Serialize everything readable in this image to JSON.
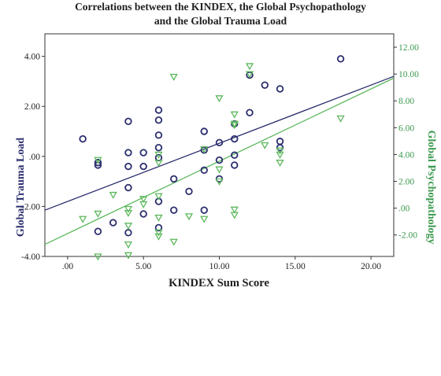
{
  "chart_data": {
    "type": "scatter",
    "title_line1": "Correlations between the KINDEX, the Global Psychopathology",
    "title_line2": "and the Global Trauma Load",
    "xlabel": "KINDEX Sum Score",
    "ylabel_left": "Global Trauma Load",
    "ylabel_right": "Global Psychopathology",
    "xlim": [
      -1.5,
      21.5
    ],
    "ylim_left": [
      -4.0,
      4.9
    ],
    "ylim_right": [
      -3.6,
      13.0
    ],
    "x_ticks": [
      ".00",
      "5.00",
      "10.00",
      "15.00",
      "20.00"
    ],
    "y_left_ticks": [
      "-4.00",
      "-2.00",
      ".00",
      "2.00",
      "4.00"
    ],
    "y_right_ticks": [
      "-2.00",
      ".00",
      "2.00",
      "4.00",
      "6.00",
      "8.00",
      "10.00",
      "12.00"
    ],
    "colors": {
      "trauma": "#2b2e6e",
      "psycho": "#5cb85c",
      "frame": "#333333",
      "label_left": "#2b2e6e",
      "label_right": "#3d9a4f"
    },
    "series": [
      {
        "name": "Global Trauma Load",
        "axis": "left",
        "marker": "circle",
        "points": [
          [
            1,
            0.7
          ],
          [
            2,
            -0.25
          ],
          [
            2,
            -0.35
          ],
          [
            2,
            -3.0
          ],
          [
            3,
            -2.65
          ],
          [
            4,
            1.4
          ],
          [
            4,
            0.15
          ],
          [
            4,
            -0.4
          ],
          [
            4,
            -1.25
          ],
          [
            4,
            -3.05
          ],
          [
            5,
            0.15
          ],
          [
            5,
            -0.4
          ],
          [
            5,
            -2.3
          ],
          [
            6,
            1.85
          ],
          [
            6,
            1.45
          ],
          [
            6,
            0.85
          ],
          [
            6,
            0.35
          ],
          [
            6,
            -0.05
          ],
          [
            6,
            -1.8
          ],
          [
            6,
            -2.85
          ],
          [
            7,
            -0.9
          ],
          [
            7,
            -2.15
          ],
          [
            8,
            -1.4
          ],
          [
            9,
            1.0
          ],
          [
            9,
            0.25
          ],
          [
            9,
            -0.55
          ],
          [
            9,
            -2.15
          ],
          [
            10,
            0.55
          ],
          [
            10,
            -0.15
          ],
          [
            10,
            -0.9
          ],
          [
            11,
            1.3
          ],
          [
            11,
            0.7
          ],
          [
            11,
            0.05
          ],
          [
            11,
            -0.35
          ],
          [
            12,
            3.25
          ],
          [
            12,
            1.75
          ],
          [
            13,
            2.85
          ],
          [
            14,
            2.7
          ],
          [
            14,
            0.6
          ],
          [
            14,
            0.35
          ],
          [
            18,
            3.9
          ]
        ],
        "fit_line": {
          "x": [
            -1.5,
            21.5
          ],
          "y": [
            -2.15,
            3.2
          ]
        }
      },
      {
        "name": "Global Psychopathology",
        "axis": "right",
        "marker": "triangle-down",
        "points": [
          [
            1,
            -0.8
          ],
          [
            2,
            3.6
          ],
          [
            2,
            -0.4
          ],
          [
            2,
            -3.6
          ],
          [
            3,
            1.0
          ],
          [
            4,
            -0.05
          ],
          [
            4,
            -0.35
          ],
          [
            4,
            -1.3
          ],
          [
            4,
            -2.7
          ],
          [
            4,
            -3.5
          ],
          [
            5,
            0.7
          ],
          [
            5,
            0.3
          ],
          [
            6,
            4.0
          ],
          [
            6,
            3.4
          ],
          [
            6,
            0.9
          ],
          [
            6,
            -0.7
          ],
          [
            6,
            -1.8
          ],
          [
            6,
            -2.1
          ],
          [
            7,
            9.8
          ],
          [
            7,
            -2.5
          ],
          [
            8,
            -0.6
          ],
          [
            9,
            4.4
          ],
          [
            9,
            -0.8
          ],
          [
            10,
            8.2
          ],
          [
            10,
            2.9
          ],
          [
            10,
            2.0
          ],
          [
            11,
            7.0
          ],
          [
            11,
            6.3
          ],
          [
            11,
            6.2
          ],
          [
            11,
            -0.1
          ],
          [
            11,
            -0.5
          ],
          [
            12,
            10.6
          ],
          [
            12,
            10.0
          ],
          [
            13,
            4.7
          ],
          [
            14,
            4.3
          ],
          [
            14,
            4.0
          ],
          [
            14,
            3.4
          ],
          [
            18,
            6.7
          ]
        ],
        "fit_line": {
          "x": [
            -1.5,
            21.5
          ],
          "y": [
            -2.7,
            9.7
          ]
        }
      }
    ]
  }
}
